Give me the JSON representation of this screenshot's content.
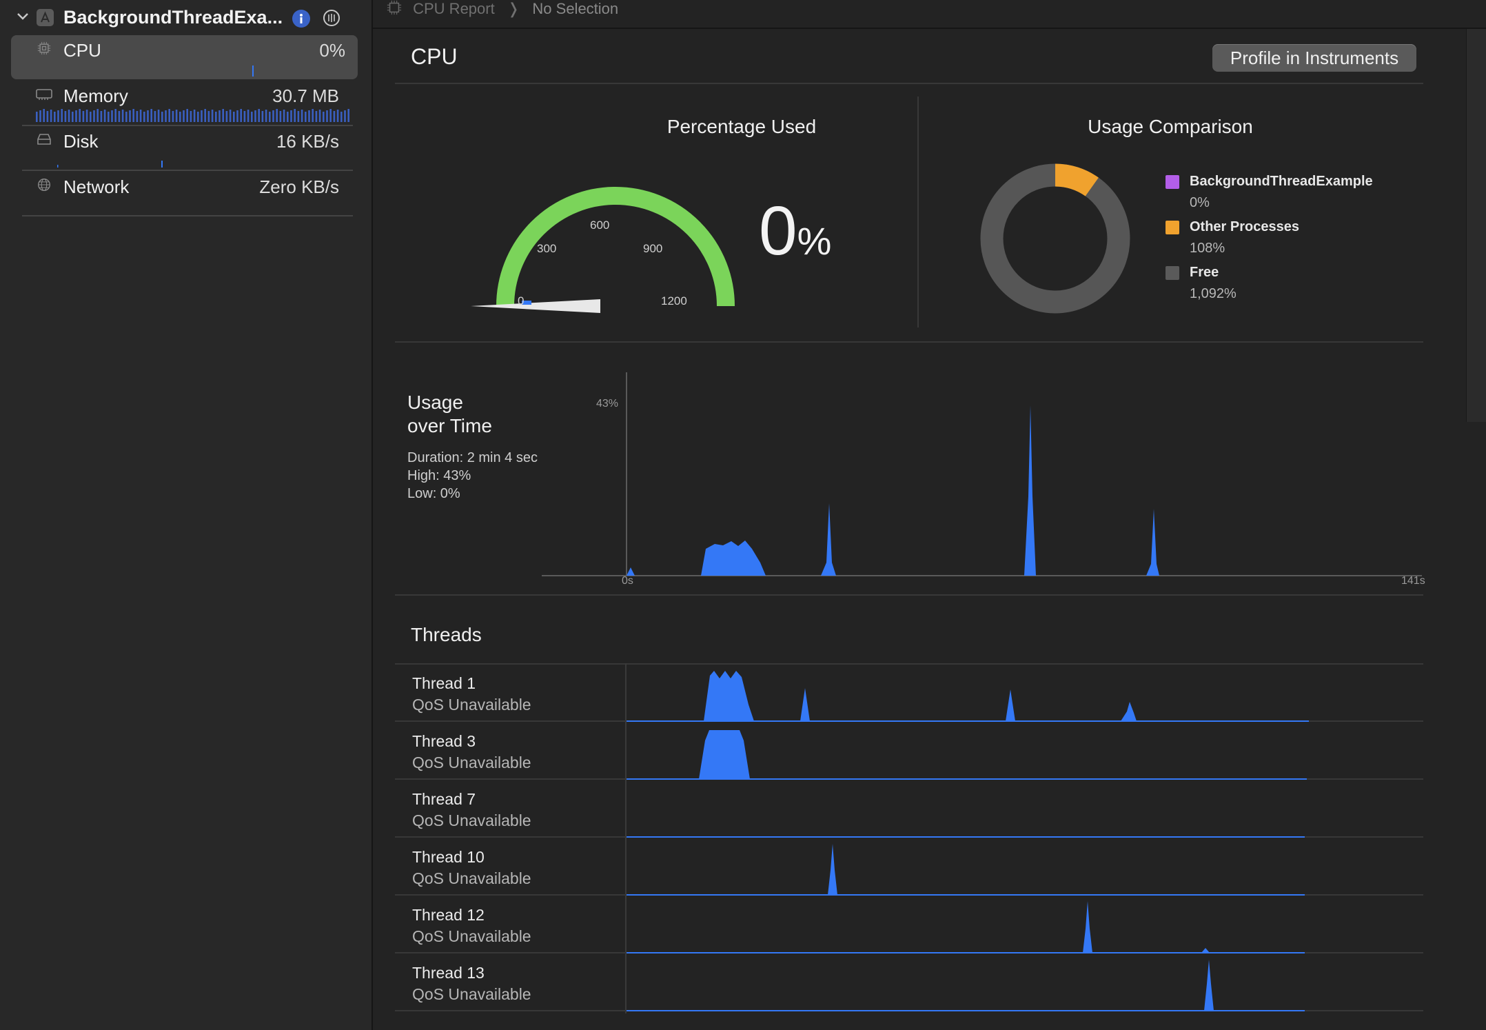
{
  "sidebar": {
    "app_title": "BackgroundThreadExa...",
    "gauges": [
      {
        "label": "CPU",
        "value": "0%"
      },
      {
        "label": "Memory",
        "value": "30.7 MB"
      },
      {
        "label": "Disk",
        "value": "16 KB/s"
      },
      {
        "label": "Network",
        "value": "Zero KB/s"
      }
    ]
  },
  "breadcrumb": {
    "part1": "CPU Report",
    "separator": "❭",
    "part2": "No Selection"
  },
  "report": {
    "title": "CPU",
    "profile_button": "Profile in Instruments"
  },
  "percentage_used": {
    "title": "Percentage Used",
    "gauge_ticks": [
      "0",
      "300",
      "600",
      "900",
      "1200"
    ],
    "gauge_max": 1200,
    "current_value": 0,
    "value_text": "0",
    "unit_text": "%"
  },
  "usage_comparison": {
    "title": "Usage Comparison",
    "legend": [
      {
        "name": "BackgroundThreadExample",
        "value": "0%",
        "color": "#b35ee8"
      },
      {
        "name": "Other Processes",
        "value": "108%",
        "color": "#f0a22e"
      },
      {
        "name": "Free",
        "value": "1,092%",
        "color": "#5a5a5a"
      }
    ]
  },
  "usage_over_time": {
    "title_line1": "Usage",
    "title_line2": "over Time",
    "duration": "Duration: 2 min 4 sec",
    "high": "High: 43%",
    "low": "Low: 0%",
    "y_max_label": "43%",
    "x_start_label": "0s",
    "x_end_label": "141s"
  },
  "threads": {
    "title": "Threads",
    "items": [
      {
        "name": "Thread 1",
        "qos": "QoS Unavailable"
      },
      {
        "name": "Thread 3",
        "qos": "QoS Unavailable"
      },
      {
        "name": "Thread 7",
        "qos": "QoS Unavailable"
      },
      {
        "name": "Thread 10",
        "qos": "QoS Unavailable"
      },
      {
        "name": "Thread 12",
        "qos": "QoS Unavailable"
      },
      {
        "name": "Thread 13",
        "qos": "QoS Unavailable"
      }
    ]
  },
  "colors": {
    "accent_blue": "#3478f6",
    "gauge_green": "#7bd45a",
    "donut_orange": "#f0a22e",
    "donut_gray": "#565656"
  }
}
